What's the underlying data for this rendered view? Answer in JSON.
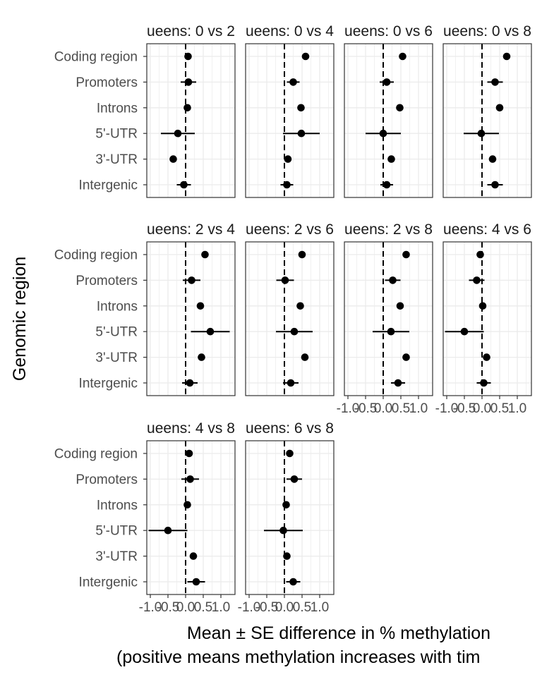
{
  "chart_data": {
    "type": "scatter",
    "layout": "faceted dot-and-whisker (forest) plot, 4 columns",
    "xlabel_lines": [
      "Mean ± SE difference in % methylation",
      "(positive means methylation increases with tim"
    ],
    "ylabel": "Genomic region",
    "categories": [
      "Coding region",
      "Promoters",
      "Introns",
      "5'-UTR",
      "3'-UTR",
      "Intergenic"
    ],
    "x_ticks": [
      -1.0,
      -0.5,
      0.0,
      0.5,
      1.0
    ],
    "x_tick_labels": [
      "-1.0",
      "-0.5",
      "0.0",
      "0.5",
      "1.0"
    ],
    "xlim": [
      -1.1,
      1.4
    ],
    "reference_line": 0,
    "grid": true,
    "facets": [
      {
        "title": "ueens: 0 vs 2",
        "points": [
          {
            "region": "Coding region",
            "mean": 0.07,
            "se": 0.0
          },
          {
            "region": "Promoters",
            "mean": 0.08,
            "se": 0.22
          },
          {
            "region": "Introns",
            "mean": 0.05,
            "se": 0.0
          },
          {
            "region": "5'-UTR",
            "mean": -0.22,
            "se": 0.48
          },
          {
            "region": "3'-UTR",
            "mean": -0.35,
            "se": 0.0
          },
          {
            "region": "Intergenic",
            "mean": -0.05,
            "se": 0.2
          }
        ]
      },
      {
        "title": "ueens: 0 vs 4",
        "points": [
          {
            "region": "Coding region",
            "mean": 0.6,
            "se": 0.0
          },
          {
            "region": "Promoters",
            "mean": 0.25,
            "se": 0.18
          },
          {
            "region": "Introns",
            "mean": 0.47,
            "se": 0.0
          },
          {
            "region": "5'-UTR",
            "mean": 0.48,
            "se": 0.52
          },
          {
            "region": "3'-UTR",
            "mean": 0.1,
            "se": 0.0
          },
          {
            "region": "Intergenic",
            "mean": 0.07,
            "se": 0.18
          }
        ]
      },
      {
        "title": "ueens: 0 vs 6",
        "points": [
          {
            "region": "Coding region",
            "mean": 0.55,
            "se": 0.0
          },
          {
            "region": "Promoters",
            "mean": 0.1,
            "se": 0.2
          },
          {
            "region": "Introns",
            "mean": 0.47,
            "se": 0.0
          },
          {
            "region": "5'-UTR",
            "mean": 0.0,
            "se": 0.5
          },
          {
            "region": "3'-UTR",
            "mean": 0.23,
            "se": 0.0
          },
          {
            "region": "Intergenic",
            "mean": 0.1,
            "se": 0.18
          }
        ]
      },
      {
        "title": "ueens: 0 vs 8",
        "points": [
          {
            "region": "Coding region",
            "mean": 0.7,
            "se": 0.0
          },
          {
            "region": "Promoters",
            "mean": 0.37,
            "se": 0.22
          },
          {
            "region": "Introns",
            "mean": 0.5,
            "se": 0.0
          },
          {
            "region": "5'-UTR",
            "mean": -0.02,
            "se": 0.5
          },
          {
            "region": "3'-UTR",
            "mean": 0.3,
            "se": 0.0
          },
          {
            "region": "Intergenic",
            "mean": 0.37,
            "se": 0.22
          }
        ]
      },
      {
        "title": "ueens: 2 vs 4",
        "points": [
          {
            "region": "Coding region",
            "mean": 0.55,
            "se": 0.0
          },
          {
            "region": "Promoters",
            "mean": 0.17,
            "se": 0.25
          },
          {
            "region": "Introns",
            "mean": 0.42,
            "se": 0.0
          },
          {
            "region": "5'-UTR",
            "mean": 0.7,
            "se": 0.55
          },
          {
            "region": "3'-UTR",
            "mean": 0.45,
            "se": 0.1
          },
          {
            "region": "Intergenic",
            "mean": 0.12,
            "se": 0.22
          }
        ]
      },
      {
        "title": "ueens: 2 vs 6",
        "points": [
          {
            "region": "Coding region",
            "mean": 0.5,
            "se": 0.0
          },
          {
            "region": "Promoters",
            "mean": 0.02,
            "se": 0.25
          },
          {
            "region": "Introns",
            "mean": 0.45,
            "se": 0.0
          },
          {
            "region": "5'-UTR",
            "mean": 0.28,
            "se": 0.52
          },
          {
            "region": "3'-UTR",
            "mean": 0.58,
            "se": 0.1
          },
          {
            "region": "Intergenic",
            "mean": 0.18,
            "se": 0.22
          }
        ]
      },
      {
        "title": "ueens: 2 vs 8",
        "points": [
          {
            "region": "Coding region",
            "mean": 0.65,
            "se": 0.0
          },
          {
            "region": "Promoters",
            "mean": 0.27,
            "se": 0.22
          },
          {
            "region": "Introns",
            "mean": 0.48,
            "se": 0.0
          },
          {
            "region": "5'-UTR",
            "mean": 0.22,
            "se": 0.52
          },
          {
            "region": "3'-UTR",
            "mean": 0.65,
            "se": 0.1
          },
          {
            "region": "Intergenic",
            "mean": 0.42,
            "se": 0.2
          }
        ]
      },
      {
        "title": "ueens: 4 vs 6",
        "points": [
          {
            "region": "Coding region",
            "mean": -0.05,
            "se": 0.0
          },
          {
            "region": "Promoters",
            "mean": -0.15,
            "se": 0.22
          },
          {
            "region": "Introns",
            "mean": 0.02,
            "se": 0.0
          },
          {
            "region": "5'-UTR",
            "mean": -0.5,
            "se": 0.55
          },
          {
            "region": "3'-UTR",
            "mean": 0.13,
            "se": 0.1
          },
          {
            "region": "Intergenic",
            "mean": 0.05,
            "se": 0.2
          }
        ]
      },
      {
        "title": "ueens: 4 vs 8",
        "points": [
          {
            "region": "Coding region",
            "mean": 0.1,
            "se": 0.0
          },
          {
            "region": "Promoters",
            "mean": 0.13,
            "se": 0.25
          },
          {
            "region": "Introns",
            "mean": 0.05,
            "se": 0.0
          },
          {
            "region": "5'-UTR",
            "mean": -0.5,
            "se": 0.55
          },
          {
            "region": "3'-UTR",
            "mean": 0.22,
            "se": 0.1
          },
          {
            "region": "Intergenic",
            "mean": 0.3,
            "se": 0.25
          }
        ]
      },
      {
        "title": "ueens: 6 vs 8",
        "points": [
          {
            "region": "Coding region",
            "mean": 0.15,
            "se": 0.0
          },
          {
            "region": "Promoters",
            "mean": 0.28,
            "se": 0.22
          },
          {
            "region": "Introns",
            "mean": 0.05,
            "se": 0.0
          },
          {
            "region": "5'-UTR",
            "mean": -0.03,
            "se": 0.55
          },
          {
            "region": "3'-UTR",
            "mean": 0.07,
            "se": 0.1
          },
          {
            "region": "Intergenic",
            "mean": 0.25,
            "se": 0.2
          }
        ]
      }
    ]
  },
  "colors": {
    "point": "#000000",
    "grid": "#ebebeb",
    "panel_border": "#333333",
    "tick_text": "#4d4d4d"
  }
}
